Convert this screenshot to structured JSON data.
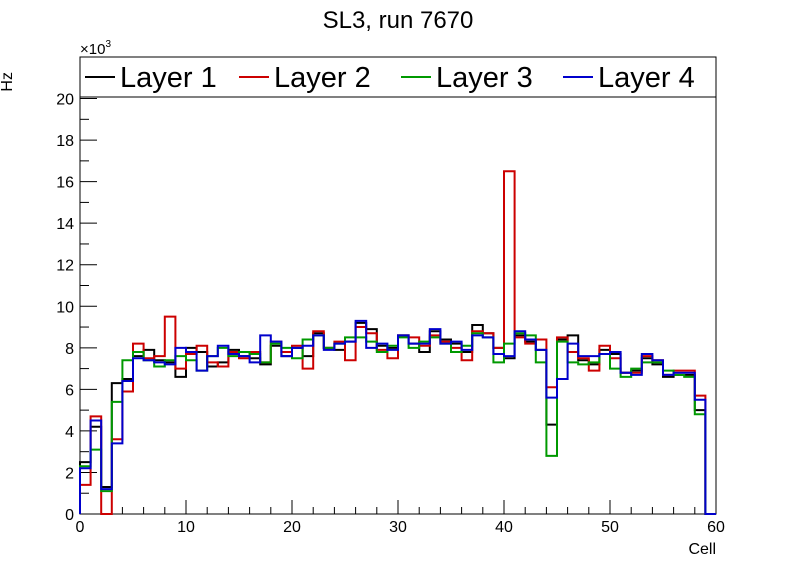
{
  "chart_data": {
    "type": "line",
    "drawstyle": "step",
    "title": "SL3, run 7670",
    "xlabel": "Cell",
    "ylabel": "Hz",
    "y_multiplier": "×10",
    "y_multiplier_exp": "3",
    "xlim": [
      0,
      60
    ],
    "ylim": [
      0,
      22
    ],
    "x_ticks": [
      0,
      10,
      20,
      30,
      40,
      50,
      60
    ],
    "y_ticks": [
      0,
      2,
      4,
      6,
      8,
      10,
      12,
      14,
      16,
      18,
      20
    ],
    "legend_position": "top",
    "bin_width": 1,
    "series": [
      {
        "name": "Layer 1",
        "color": "#000000",
        "values": [
          2.5,
          4.2,
          1.3,
          6.3,
          6.5,
          7.6,
          7.9,
          7.4,
          7.3,
          6.6,
          8.0,
          7.8,
          7.1,
          7.3,
          7.9,
          7.6,
          7.5,
          7.2,
          8.1,
          7.6,
          8.0,
          7.6,
          8.7,
          8.0,
          7.9,
          8.3,
          9.2,
          8.9,
          8.1,
          8.0,
          8.6,
          8.2,
          7.8,
          8.8,
          8.4,
          8.2,
          7.8,
          9.1,
          8.7,
          8.0,
          7.5,
          8.6,
          8.3,
          7.9,
          4.3,
          8.4,
          8.6,
          7.4,
          7.2,
          7.9,
          7.7,
          6.8,
          6.9,
          7.5,
          7.2,
          6.6,
          6.7,
          6.7,
          5.0,
          0.0
        ]
      },
      {
        "name": "Layer 2",
        "color": "#cc0000",
        "values": [
          1.4,
          4.7,
          0.0,
          3.6,
          5.9,
          8.2,
          7.5,
          7.6,
          9.5,
          7.0,
          7.7,
          8.1,
          7.3,
          7.1,
          7.8,
          7.5,
          7.8,
          7.3,
          8.3,
          7.8,
          8.1,
          7.0,
          8.8,
          8.0,
          8.3,
          7.4,
          9.0,
          8.7,
          7.9,
          7.5,
          8.6,
          8.5,
          8.1,
          8.6,
          8.3,
          8.0,
          7.4,
          8.8,
          8.7,
          8.0,
          16.5,
          8.5,
          8.2,
          8.4,
          6.1,
          8.5,
          7.8,
          7.5,
          6.9,
          8.1,
          7.5,
          6.8,
          6.8,
          7.6,
          7.4,
          6.7,
          6.9,
          6.9,
          5.7,
          0.0
        ]
      },
      {
        "name": "Layer 3",
        "color": "#009900",
        "values": [
          2.3,
          3.1,
          1.1,
          5.4,
          7.4,
          7.8,
          7.4,
          7.1,
          7.4,
          7.6,
          7.4,
          6.9,
          7.6,
          8.0,
          7.6,
          7.8,
          7.7,
          7.3,
          8.2,
          8.0,
          7.5,
          8.4,
          8.6,
          8.0,
          8.2,
          8.5,
          8.5,
          8.3,
          7.8,
          8.1,
          8.5,
          8.0,
          8.3,
          8.5,
          8.2,
          7.8,
          8.1,
          8.7,
          8.5,
          7.3,
          8.2,
          8.7,
          8.6,
          7.3,
          2.8,
          8.3,
          7.3,
          7.2,
          7.3,
          7.7,
          7.0,
          6.6,
          7.0,
          7.3,
          7.3,
          6.9,
          6.7,
          6.6,
          4.8,
          0.0
        ]
      },
      {
        "name": "Layer 4",
        "color": "#0000cc",
        "values": [
          2.2,
          4.5,
          1.2,
          3.4,
          6.4,
          7.5,
          7.4,
          7.3,
          7.2,
          8.0,
          7.8,
          6.9,
          7.6,
          8.1,
          7.7,
          7.6,
          7.3,
          8.6,
          8.3,
          7.6,
          8.0,
          8.1,
          8.6,
          7.9,
          8.2,
          8.3,
          9.3,
          8.0,
          8.2,
          7.9,
          8.6,
          8.2,
          8.2,
          8.9,
          8.2,
          8.3,
          7.9,
          8.6,
          8.5,
          7.7,
          7.6,
          8.8,
          8.4,
          7.9,
          5.6,
          6.5,
          8.2,
          7.6,
          7.6,
          7.7,
          7.8,
          6.8,
          6.7,
          7.7,
          7.4,
          6.7,
          6.8,
          6.8,
          5.5,
          0.0
        ]
      }
    ]
  }
}
